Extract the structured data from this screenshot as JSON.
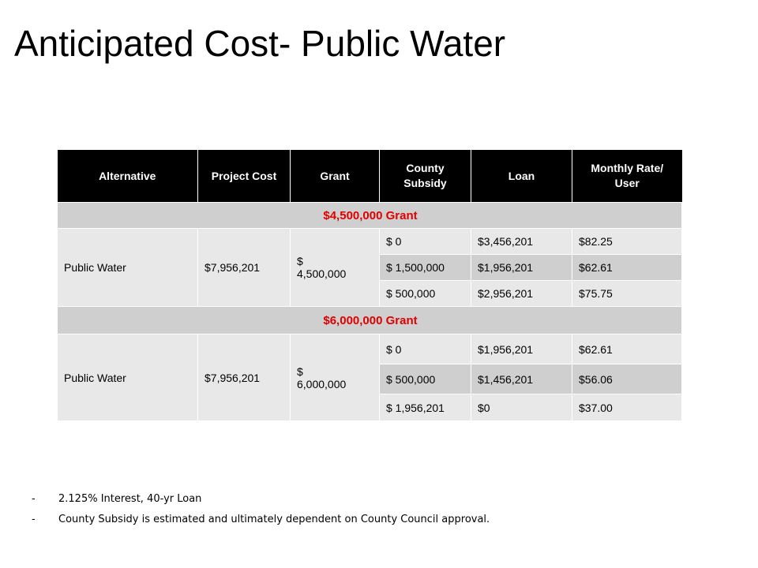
{
  "title": "Anticipated Cost- Public Water",
  "table": {
    "headers": [
      "Alternative",
      "Project Cost",
      "Grant",
      "County Subsidy",
      "Loan",
      "Monthly Rate/ User"
    ],
    "groups": [
      {
        "label": "$4,500,000 Grant",
        "alternative": "Public Water",
        "project_cost": "$7,956,201",
        "grant_line1": "$",
        "grant_line2": "4,500,000",
        "rows": [
          {
            "subsidy": "$ 0",
            "loan": "$3,456,201",
            "rate": "$82.25"
          },
          {
            "subsidy": "$ 1,500,000",
            "loan": "$1,956,201",
            "rate": "$62.61"
          },
          {
            "subsidy": "$ 500,000",
            "loan": "$2,956,201",
            "rate": "$75.75"
          }
        ]
      },
      {
        "label": "$6,000,000 Grant",
        "alternative": "Public Water",
        "project_cost": "$7,956,201",
        "grant_line1": "$",
        "grant_line2": "6,000,000",
        "rows": [
          {
            "subsidy": "$ 0",
            "loan": "$1,956,201",
            "rate": "$62.61"
          },
          {
            "subsidy": "$ 500,000",
            "loan": "$1,456,201",
            "rate": "$56.06"
          },
          {
            "subsidy": "$ 1,956,201",
            "loan": "$0",
            "rate": "$37.00"
          }
        ]
      }
    ]
  },
  "notes": [
    {
      "bullet": "-",
      "text": "2.125% Interest, 40-yr Loan"
    },
    {
      "bullet": "-",
      "text": "County Subsidy is estimated and ultimately dependent on County Council approval."
    }
  ],
  "colors": {
    "header_bg": "#000000",
    "group_label": "#e00000",
    "row_light": "#e8e8e8",
    "row_dark": "#cfcfcf"
  }
}
